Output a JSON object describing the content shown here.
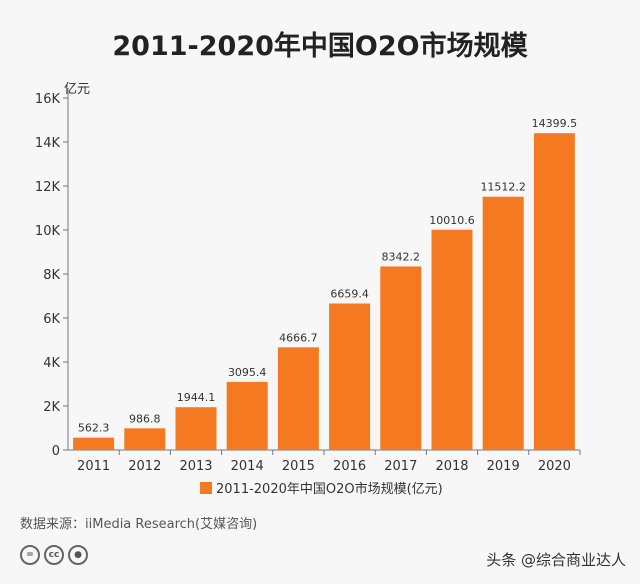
{
  "title": "2011-2020年中国O2O市场规模",
  "source": "数据来源：iiMedia Research(艾媒咨询)",
  "watermark": "头条 @综合商业达人",
  "license_icons": [
    "cc-equal-icon",
    "cc-icon",
    "cc-person-icon"
  ],
  "colors": {
    "bar": "#f47920",
    "axis": "#777777",
    "text": "#333333"
  },
  "chart_data": {
    "type": "bar",
    "title": "2011-2020年中国O2O市场规模",
    "ylabel": "亿元",
    "xlabel": "",
    "categories": [
      "2011",
      "2012",
      "2013",
      "2014",
      "2015",
      "2016",
      "2017",
      "2018",
      "2019",
      "2020"
    ],
    "values": [
      562.3,
      986.8,
      1944.1,
      3095.4,
      4666.7,
      6659.4,
      8342.2,
      10010.6,
      11512.2,
      14399.5
    ],
    "value_labels": [
      "562.3",
      "986.8",
      "1944.1",
      "3095.4",
      "4666.7",
      "6659.4",
      "8342.2",
      "10010.6",
      "11512.2",
      "14399.5"
    ],
    "ylim": [
      0,
      16000
    ],
    "yticks": [
      0,
      2000,
      4000,
      6000,
      8000,
      10000,
      12000,
      14000,
      16000
    ],
    "ytick_labels": [
      "0",
      "2K",
      "4K",
      "6K",
      "8K",
      "10K",
      "12K",
      "14K",
      "16K"
    ],
    "legend": "2011-2020年中国O2O市场规模(亿元)",
    "legend_position": "bottom",
    "grid": false
  }
}
